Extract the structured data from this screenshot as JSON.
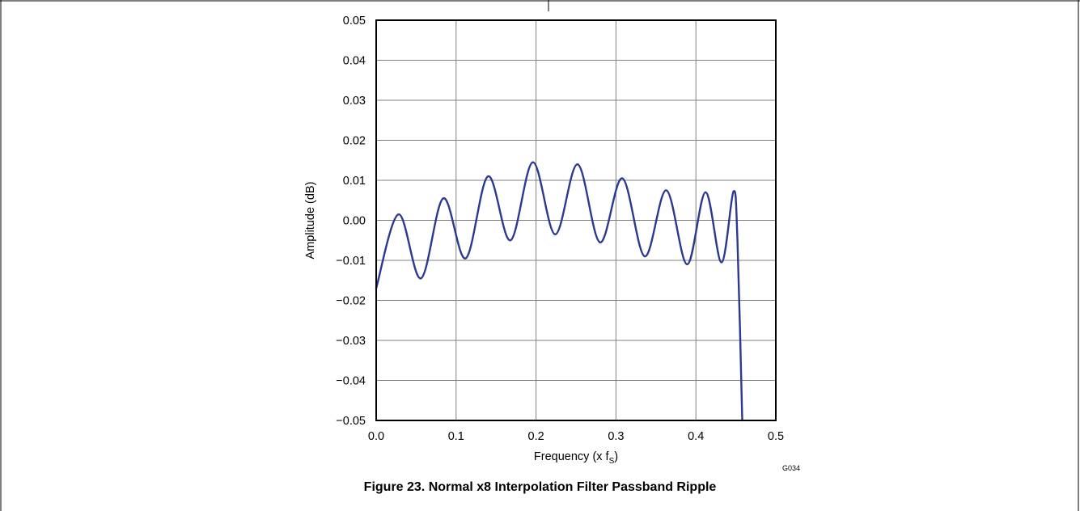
{
  "figure": {
    "caption": "Figure 23. Normal x8 Interpolation Filter Passband Ripple",
    "code": "G034"
  },
  "chart_data": {
    "type": "line",
    "xlabel": "Frequency (x f",
    "xlabel_sub": "S",
    "xlabel_end": ")",
    "ylabel": "Amplitude (dB)",
    "xlim": [
      0.0,
      0.5
    ],
    "ylim": [
      -0.05,
      0.05
    ],
    "x_ticks": [
      0.0,
      0.1,
      0.2,
      0.3,
      0.4,
      0.5
    ],
    "x_tick_labels": [
      "0.0",
      "0.1",
      "0.2",
      "0.3",
      "0.4",
      "0.5"
    ],
    "y_ticks": [
      0.05,
      0.04,
      0.03,
      0.02,
      0.01,
      0.0,
      -0.01,
      -0.02,
      -0.03,
      -0.04,
      -0.05
    ],
    "y_tick_labels": [
      "0.05",
      "0.04",
      "0.03",
      "0.02",
      "0.01",
      "0.00",
      "−0.01",
      "−0.02",
      "−0.03",
      "−0.04",
      "−0.05"
    ],
    "grid": true,
    "line_color": "#2b3990",
    "series": [
      {
        "x": [
          0.0,
          0.028,
          0.056,
          0.084,
          0.112,
          0.14,
          0.168,
          0.196,
          0.224,
          0.252,
          0.28,
          0.308,
          0.336,
          0.363,
          0.389,
          0.412,
          0.432,
          0.447,
          0.452,
          0.458
        ],
        "y": [
          -0.017,
          0.0015,
          -0.0145,
          0.0055,
          -0.0095,
          0.011,
          -0.005,
          0.0145,
          -0.0035,
          0.014,
          -0.0055,
          0.0105,
          -0.009,
          0.0075,
          -0.011,
          0.007,
          -0.0105,
          0.0072,
          -0.005,
          -0.05
        ]
      }
    ]
  }
}
